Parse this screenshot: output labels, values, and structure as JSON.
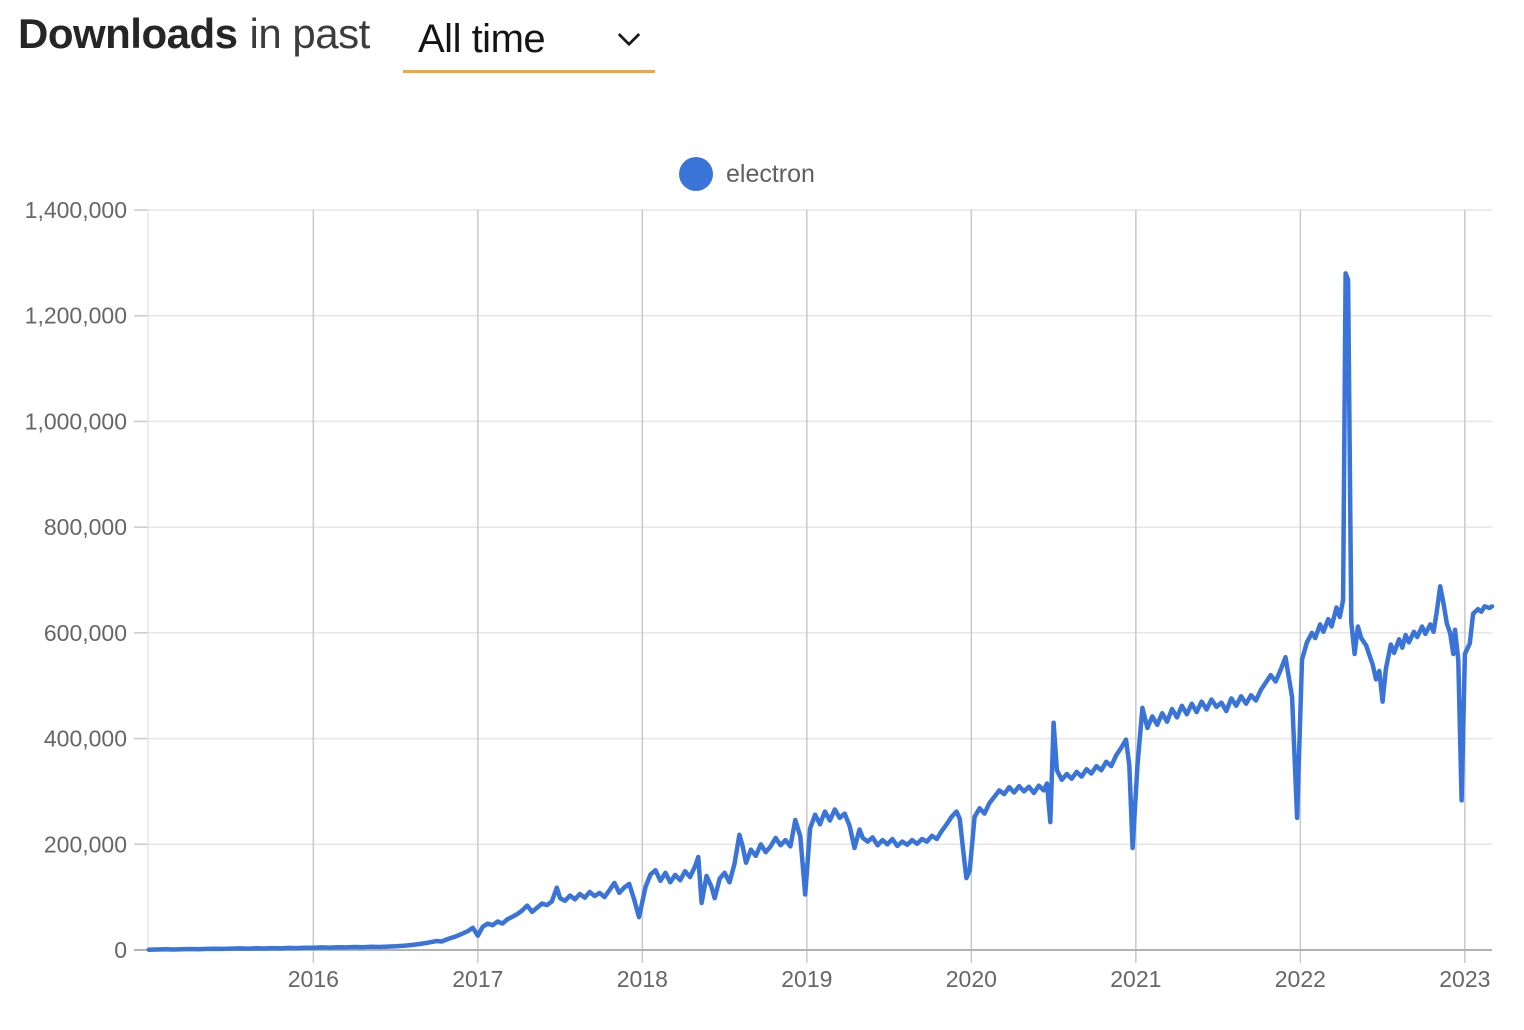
{
  "header": {
    "title_bold": "Downloads",
    "title_rest": "in past",
    "range_selector": {
      "selected": "All time"
    },
    "accent_color": "#f2a63e"
  },
  "legend": {
    "series_label": "electron",
    "dot_color": "#3a74d9"
  },
  "chart_data": {
    "type": "line",
    "title": "Downloads in past All time",
    "xlabel": "",
    "ylabel": "",
    "legend_position": "top-center",
    "grid": true,
    "style": {
      "line_color": "#3a74d9",
      "grid_color_x": "#c9c9c9",
      "grid_color_y": "#e5e5e5",
      "axis_color": "#b3b3b3",
      "tick_color": "#c9c9c9",
      "tick_label_color": "#666666"
    },
    "x_axis": {
      "min": 2014.995,
      "max": 2023.165,
      "ticks": [
        {
          "value": 2016,
          "label": "2016"
        },
        {
          "value": 2017,
          "label": "2017"
        },
        {
          "value": 2018,
          "label": "2018"
        },
        {
          "value": 2019,
          "label": "2019"
        },
        {
          "value": 2020,
          "label": "2020"
        },
        {
          "value": 2021,
          "label": "2021"
        },
        {
          "value": 2022,
          "label": "2022"
        },
        {
          "value": 2023,
          "label": "2023"
        }
      ]
    },
    "y_axis": {
      "min": 0,
      "max": 1400000,
      "ticks": [
        {
          "value": 0,
          "label": "0"
        },
        {
          "value": 200000,
          "label": "200,000"
        },
        {
          "value": 400000,
          "label": "400,000"
        },
        {
          "value": 600000,
          "label": "600,000"
        },
        {
          "value": 800000,
          "label": "800,000"
        },
        {
          "value": 1000000,
          "label": "1,000,000"
        },
        {
          "value": 1200000,
          "label": "1,200,000"
        },
        {
          "value": 1400000,
          "label": "1,400,000"
        }
      ]
    },
    "series": [
      {
        "name": "electron",
        "color": "#3a74d9",
        "points": [
          [
            2015.0,
            500
          ],
          [
            2015.05,
            900
          ],
          [
            2015.1,
            1300
          ],
          [
            2015.15,
            1000
          ],
          [
            2015.2,
            1600
          ],
          [
            2015.25,
            1900
          ],
          [
            2015.3,
            1500
          ],
          [
            2015.35,
            2100
          ],
          [
            2015.4,
            2500
          ],
          [
            2015.45,
            2100
          ],
          [
            2015.5,
            2700
          ],
          [
            2015.55,
            3100
          ],
          [
            2015.6,
            2600
          ],
          [
            2015.65,
            3300
          ],
          [
            2015.7,
            2900
          ],
          [
            2015.75,
            3600
          ],
          [
            2015.8,
            3100
          ],
          [
            2015.85,
            3900
          ],
          [
            2015.9,
            3500
          ],
          [
            2015.95,
            4300
          ],
          [
            2016.0,
            4100
          ],
          [
            2016.05,
            4900
          ],
          [
            2016.1,
            4500
          ],
          [
            2016.15,
            5300
          ],
          [
            2016.2,
            4900
          ],
          [
            2016.25,
            5600
          ],
          [
            2016.3,
            5300
          ],
          [
            2016.35,
            6100
          ],
          [
            2016.4,
            5700
          ],
          [
            2016.45,
            6500
          ],
          [
            2016.5,
            7000
          ],
          [
            2016.55,
            8000
          ],
          [
            2016.6,
            9500
          ],
          [
            2016.65,
            11500
          ],
          [
            2016.7,
            14000
          ],
          [
            2016.75,
            17000
          ],
          [
            2016.78,
            16000
          ],
          [
            2016.82,
            21000
          ],
          [
            2016.86,
            25000
          ],
          [
            2016.9,
            30000
          ],
          [
            2016.94,
            36000
          ],
          [
            2016.97,
            42000
          ],
          [
            2017.0,
            27000
          ],
          [
            2017.03,
            44000
          ],
          [
            2017.06,
            50000
          ],
          [
            2017.09,
            47000
          ],
          [
            2017.12,
            54000
          ],
          [
            2017.15,
            50000
          ],
          [
            2017.18,
            58000
          ],
          [
            2017.21,
            63000
          ],
          [
            2017.24,
            68000
          ],
          [
            2017.27,
            75000
          ],
          [
            2017.3,
            84000
          ],
          [
            2017.33,
            72000
          ],
          [
            2017.36,
            80000
          ],
          [
            2017.39,
            88000
          ],
          [
            2017.42,
            85000
          ],
          [
            2017.45,
            92000
          ],
          [
            2017.48,
            118000
          ],
          [
            2017.5,
            98000
          ],
          [
            2017.53,
            93000
          ],
          [
            2017.56,
            103000
          ],
          [
            2017.59,
            96000
          ],
          [
            2017.62,
            106000
          ],
          [
            2017.65,
            99000
          ],
          [
            2017.68,
            110000
          ],
          [
            2017.71,
            102000
          ],
          [
            2017.74,
            108000
          ],
          [
            2017.77,
            100000
          ],
          [
            2017.8,
            113000
          ],
          [
            2017.83,
            127000
          ],
          [
            2017.86,
            108000
          ],
          [
            2017.89,
            118000
          ],
          [
            2017.92,
            125000
          ],
          [
            2017.95,
            96000
          ],
          [
            2017.98,
            62000
          ],
          [
            2018.02,
            120000
          ],
          [
            2018.05,
            143000
          ],
          [
            2018.08,
            151000
          ],
          [
            2018.11,
            131000
          ],
          [
            2018.14,
            146000
          ],
          [
            2018.17,
            128000
          ],
          [
            2018.2,
            142000
          ],
          [
            2018.23,
            132000
          ],
          [
            2018.26,
            149000
          ],
          [
            2018.29,
            138000
          ],
          [
            2018.32,
            158000
          ],
          [
            2018.34,
            176000
          ],
          [
            2018.36,
            89000
          ],
          [
            2018.39,
            140000
          ],
          [
            2018.42,
            120000
          ],
          [
            2018.44,
            98000
          ],
          [
            2018.47,
            135000
          ],
          [
            2018.5,
            146000
          ],
          [
            2018.53,
            128000
          ],
          [
            2018.56,
            163000
          ],
          [
            2018.59,
            218000
          ],
          [
            2018.61,
            196000
          ],
          [
            2018.63,
            165000
          ],
          [
            2018.66,
            190000
          ],
          [
            2018.69,
            178000
          ],
          [
            2018.72,
            200000
          ],
          [
            2018.75,
            185000
          ],
          [
            2018.78,
            196000
          ],
          [
            2018.81,
            212000
          ],
          [
            2018.84,
            198000
          ],
          [
            2018.87,
            208000
          ],
          [
            2018.9,
            196000
          ],
          [
            2018.93,
            246000
          ],
          [
            2018.96,
            215000
          ],
          [
            2018.99,
            105000
          ],
          [
            2019.02,
            230000
          ],
          [
            2019.05,
            256000
          ],
          [
            2019.08,
            238000
          ],
          [
            2019.11,
            262000
          ],
          [
            2019.14,
            245000
          ],
          [
            2019.17,
            266000
          ],
          [
            2019.2,
            250000
          ],
          [
            2019.23,
            258000
          ],
          [
            2019.26,
            235000
          ],
          [
            2019.29,
            193000
          ],
          [
            2019.32,
            228000
          ],
          [
            2019.34,
            212000
          ],
          [
            2019.37,
            205000
          ],
          [
            2019.4,
            213000
          ],
          [
            2019.43,
            198000
          ],
          [
            2019.46,
            208000
          ],
          [
            2019.49,
            200000
          ],
          [
            2019.52,
            210000
          ],
          [
            2019.55,
            197000
          ],
          [
            2019.58,
            205000
          ],
          [
            2019.61,
            199000
          ],
          [
            2019.64,
            208000
          ],
          [
            2019.67,
            201000
          ],
          [
            2019.7,
            210000
          ],
          [
            2019.73,
            205000
          ],
          [
            2019.76,
            216000
          ],
          [
            2019.79,
            210000
          ],
          [
            2019.82,
            225000
          ],
          [
            2019.85,
            238000
          ],
          [
            2019.88,
            252000
          ],
          [
            2019.91,
            262000
          ],
          [
            2019.93,
            248000
          ],
          [
            2019.95,
            190000
          ],
          [
            2019.97,
            136000
          ],
          [
            2019.99,
            150000
          ],
          [
            2020.02,
            252000
          ],
          [
            2020.05,
            268000
          ],
          [
            2020.08,
            258000
          ],
          [
            2020.11,
            278000
          ],
          [
            2020.14,
            290000
          ],
          [
            2020.17,
            302000
          ],
          [
            2020.2,
            295000
          ],
          [
            2020.23,
            308000
          ],
          [
            2020.26,
            298000
          ],
          [
            2020.29,
            310000
          ],
          [
            2020.32,
            300000
          ],
          [
            2020.35,
            309000
          ],
          [
            2020.38,
            297000
          ],
          [
            2020.41,
            311000
          ],
          [
            2020.44,
            302000
          ],
          [
            2020.46,
            315000
          ],
          [
            2020.48,
            242000
          ],
          [
            2020.5,
            430000
          ],
          [
            2020.52,
            340000
          ],
          [
            2020.55,
            322000
          ],
          [
            2020.58,
            333000
          ],
          [
            2020.61,
            324000
          ],
          [
            2020.64,
            337000
          ],
          [
            2020.67,
            328000
          ],
          [
            2020.7,
            342000
          ],
          [
            2020.73,
            334000
          ],
          [
            2020.76,
            348000
          ],
          [
            2020.79,
            340000
          ],
          [
            2020.82,
            356000
          ],
          [
            2020.85,
            348000
          ],
          [
            2020.88,
            368000
          ],
          [
            2020.91,
            382000
          ],
          [
            2020.94,
            398000
          ],
          [
            2020.96,
            350000
          ],
          [
            2020.98,
            193000
          ],
          [
            2021.01,
            350000
          ],
          [
            2021.04,
            458000
          ],
          [
            2021.07,
            420000
          ],
          [
            2021.1,
            442000
          ],
          [
            2021.13,
            426000
          ],
          [
            2021.16,
            448000
          ],
          [
            2021.19,
            432000
          ],
          [
            2021.22,
            456000
          ],
          [
            2021.25,
            440000
          ],
          [
            2021.28,
            462000
          ],
          [
            2021.31,
            446000
          ],
          [
            2021.34,
            466000
          ],
          [
            2021.37,
            450000
          ],
          [
            2021.4,
            470000
          ],
          [
            2021.43,
            455000
          ],
          [
            2021.46,
            474000
          ],
          [
            2021.49,
            460000
          ],
          [
            2021.52,
            468000
          ],
          [
            2021.55,
            452000
          ],
          [
            2021.58,
            476000
          ],
          [
            2021.61,
            462000
          ],
          [
            2021.64,
            480000
          ],
          [
            2021.67,
            466000
          ],
          [
            2021.7,
            482000
          ],
          [
            2021.73,
            472000
          ],
          [
            2021.76,
            492000
          ],
          [
            2021.79,
            506000
          ],
          [
            2021.82,
            520000
          ],
          [
            2021.85,
            508000
          ],
          [
            2021.88,
            530000
          ],
          [
            2021.91,
            554000
          ],
          [
            2021.93,
            516000
          ],
          [
            2021.95,
            478000
          ],
          [
            2021.98,
            250000
          ],
          [
            2022.01,
            549000
          ],
          [
            2022.04,
            582000
          ],
          [
            2022.07,
            600000
          ],
          [
            2022.09,
            590000
          ],
          [
            2022.12,
            616000
          ],
          [
            2022.14,
            602000
          ],
          [
            2022.17,
            626000
          ],
          [
            2022.19,
            612000
          ],
          [
            2022.22,
            648000
          ],
          [
            2022.24,
            630000
          ],
          [
            2022.26,
            662000
          ],
          [
            2022.275,
            1280000
          ],
          [
            2022.29,
            1268000
          ],
          [
            2022.31,
            620000
          ],
          [
            2022.33,
            560000
          ],
          [
            2022.35,
            612000
          ],
          [
            2022.37,
            590000
          ],
          [
            2022.4,
            576000
          ],
          [
            2022.42,
            558000
          ],
          [
            2022.44,
            540000
          ],
          [
            2022.46,
            512000
          ],
          [
            2022.48,
            528000
          ],
          [
            2022.5,
            470000
          ],
          [
            2022.52,
            532000
          ],
          [
            2022.55,
            578000
          ],
          [
            2022.57,
            562000
          ],
          [
            2022.6,
            588000
          ],
          [
            2022.62,
            572000
          ],
          [
            2022.64,
            596000
          ],
          [
            2022.66,
            582000
          ],
          [
            2022.69,
            602000
          ],
          [
            2022.71,
            592000
          ],
          [
            2022.74,
            612000
          ],
          [
            2022.76,
            598000
          ],
          [
            2022.79,
            616000
          ],
          [
            2022.81,
            602000
          ],
          [
            2022.83,
            642000
          ],
          [
            2022.85,
            688000
          ],
          [
            2022.87,
            656000
          ],
          [
            2022.89,
            618000
          ],
          [
            2022.91,
            600000
          ],
          [
            2022.93,
            560000
          ],
          [
            2022.94,
            606000
          ],
          [
            2022.96,
            548000
          ],
          [
            2022.98,
            283000
          ],
          [
            2023.0,
            560000
          ],
          [
            2023.03,
            580000
          ],
          [
            2023.05,
            636000
          ],
          [
            2023.08,
            645000
          ],
          [
            2023.1,
            640000
          ],
          [
            2023.12,
            650000
          ],
          [
            2023.15,
            647000
          ],
          [
            2023.165,
            650000
          ]
        ]
      }
    ]
  }
}
